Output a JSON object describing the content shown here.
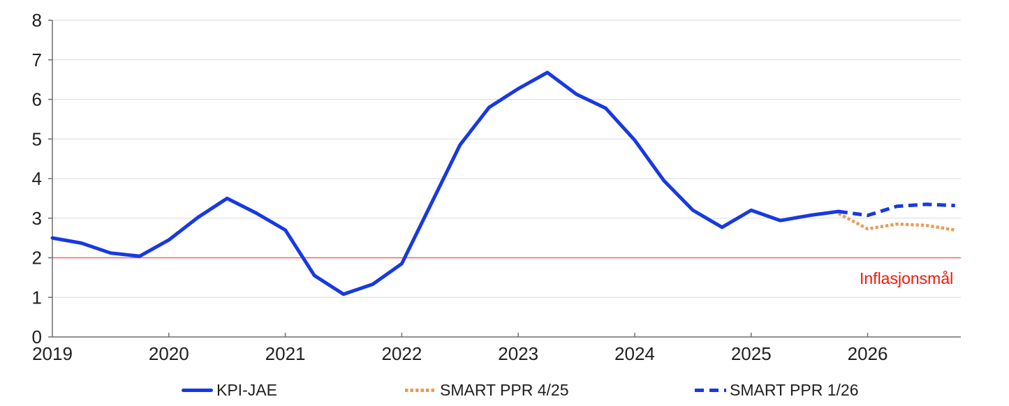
{
  "chart_data": {
    "type": "line",
    "title": "",
    "xlabel": "",
    "ylabel": "",
    "x_axis": {
      "ticks": [
        2019,
        2020,
        2021,
        2022,
        2023,
        2024,
        2025,
        2026
      ],
      "range": [
        2019,
        2026.8
      ]
    },
    "y_axis": {
      "ticks": [
        0,
        1,
        2,
        3,
        4,
        5,
        6,
        7,
        8
      ],
      "range": [
        0,
        8
      ]
    },
    "grid": "horizontal",
    "legend_position": "bottom",
    "reference_line": {
      "value": 2,
      "label": "Inflasjonsmål"
    },
    "series": [
      {
        "id": "kpi-jae",
        "name": "KPI-JAE",
        "style": "solid",
        "color": "#1739e2",
        "points": [
          [
            2019.0,
            2.5
          ],
          [
            2019.25,
            2.37
          ],
          [
            2019.5,
            2.12
          ],
          [
            2019.75,
            2.04
          ],
          [
            2020.0,
            2.45
          ],
          [
            2020.25,
            3.02
          ],
          [
            2020.5,
            3.5
          ],
          [
            2020.75,
            3.13
          ],
          [
            2021.0,
            2.7
          ],
          [
            2021.25,
            1.55
          ],
          [
            2021.5,
            1.08
          ],
          [
            2021.75,
            1.33
          ],
          [
            2022.0,
            1.85
          ],
          [
            2022.25,
            3.35
          ],
          [
            2022.5,
            4.85
          ],
          [
            2022.75,
            5.8
          ],
          [
            2023.0,
            6.27
          ],
          [
            2023.25,
            6.68
          ],
          [
            2023.5,
            6.13
          ],
          [
            2023.75,
            5.78
          ],
          [
            2024.0,
            4.97
          ],
          [
            2024.25,
            3.95
          ],
          [
            2024.5,
            3.2
          ],
          [
            2024.75,
            2.77
          ],
          [
            2025.0,
            3.2
          ],
          [
            2025.25,
            2.94
          ],
          [
            2025.5,
            3.07
          ],
          [
            2025.75,
            3.17
          ]
        ]
      },
      {
        "id": "smart-ppr-4-25",
        "name": "SMART PPR 4/25",
        "style": "dotted",
        "color": "#ed9b57",
        "points": [
          [
            2025.75,
            3.12
          ],
          [
            2026.0,
            2.73
          ],
          [
            2026.25,
            2.85
          ],
          [
            2026.5,
            2.82
          ],
          [
            2026.75,
            2.7
          ]
        ]
      },
      {
        "id": "smart-ppr-1-26",
        "name": "SMART PPR 1/26",
        "style": "dashed",
        "color": "#1739e2",
        "points": [
          [
            2025.75,
            3.17
          ],
          [
            2026.0,
            3.07
          ],
          [
            2026.25,
            3.3
          ],
          [
            2026.5,
            3.35
          ],
          [
            2026.75,
            3.32
          ]
        ]
      }
    ],
    "colors": {
      "reference_line": "#f56560",
      "reference_label": "#fa1505",
      "grid": "#d9d9d9",
      "axis": "#6e6e6e",
      "tick_text": "#1f1f1f"
    }
  }
}
